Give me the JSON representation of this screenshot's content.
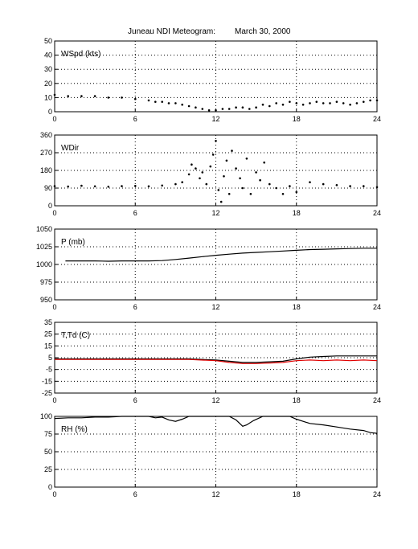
{
  "title": "Juneau NDI Meteogram:",
  "date": "March 30, 2000",
  "chart_data": [
    {
      "type": "scatter",
      "label": "WSpd (kts)",
      "xlim": [
        0,
        24
      ],
      "xticks": [
        0,
        6,
        12,
        18,
        24
      ],
      "ylim": [
        0,
        50
      ],
      "yticks": [
        0,
        10,
        20,
        30,
        40,
        50
      ],
      "grid": true,
      "series": [
        {
          "color": "#000000",
          "x": [
            0,
            1,
            2,
            3,
            4,
            5,
            6,
            7,
            7.5,
            8,
            8.5,
            9,
            9.5,
            10,
            10.5,
            11,
            11.5,
            12,
            12.5,
            13,
            13.5,
            14,
            14.5,
            15,
            15.5,
            16,
            16.5,
            17,
            17.5,
            18,
            18.5,
            19,
            19.5,
            20,
            20.5,
            21,
            21.5,
            22,
            22.5,
            23,
            23.5,
            24
          ],
          "y": [
            12,
            11,
            11,
            11,
            10,
            10,
            9,
            8,
            7,
            7,
            6,
            6,
            5,
            4,
            3,
            2,
            1,
            1,
            2,
            2,
            3,
            3,
            2,
            3,
            5,
            4,
            6,
            5,
            7,
            6,
            5,
            6,
            7,
            6,
            6,
            7,
            6,
            5,
            6,
            7,
            8,
            8
          ]
        }
      ]
    },
    {
      "type": "scatter",
      "label": "WDir",
      "xlim": [
        0,
        24
      ],
      "xticks": [
        0,
        6,
        12,
        18,
        24
      ],
      "ylim": [
        0,
        360
      ],
      "yticks": [
        0,
        90,
        180,
        270,
        360
      ],
      "grid": true,
      "series": [
        {
          "color": "#000000",
          "x": [
            0,
            1,
            2,
            3,
            4,
            5,
            6,
            7,
            8,
            9,
            9.5,
            10,
            10.2,
            10.5,
            10.8,
            11,
            11.3,
            11.6,
            11.8,
            12,
            12.2,
            12.4,
            12.6,
            12.8,
            13,
            13.2,
            13.5,
            13.8,
            14,
            14.3,
            14.6,
            15,
            15.3,
            15.6,
            16,
            16.5,
            17,
            17.5,
            18,
            19,
            20,
            21,
            22,
            23,
            24
          ],
          "y": [
            100,
            98,
            102,
            99,
            97,
            100,
            101,
            99,
            103,
            110,
            120,
            160,
            210,
            190,
            140,
            170,
            110,
            200,
            260,
            330,
            80,
            20,
            150,
            230,
            60,
            280,
            190,
            140,
            90,
            240,
            60,
            170,
            130,
            220,
            110,
            90,
            60,
            100,
            70,
            120,
            110,
            105,
            100,
            100,
            95
          ]
        }
      ]
    },
    {
      "type": "line",
      "label": "P (mb)",
      "xlim": [
        0,
        24
      ],
      "xticks": [
        0,
        6,
        12,
        18,
        24
      ],
      "ylim": [
        950,
        1050
      ],
      "yticks": [
        950,
        975,
        1000,
        1025,
        1050
      ],
      "grid": true,
      "series": [
        {
          "color": "#000000",
          "x": [
            0.8,
            2,
            3,
            4,
            5,
            6,
            7,
            8,
            9,
            10,
            11,
            12,
            13,
            14,
            15,
            16,
            17,
            18,
            19,
            20,
            21,
            22,
            23,
            24
          ],
          "y": [
            1005,
            1005,
            1005,
            1004.5,
            1005,
            1005,
            1005,
            1005.5,
            1007,
            1009,
            1011,
            1013,
            1014.5,
            1016,
            1017,
            1018,
            1019,
            1020,
            1021,
            1021.5,
            1022,
            1022.5,
            1023,
            1023
          ]
        }
      ]
    },
    {
      "type": "line",
      "label": "T,Td (C)",
      "xlim": [
        0,
        24
      ],
      "xticks": [
        0,
        6,
        12,
        18,
        24
      ],
      "ylim": [
        -25,
        35
      ],
      "yticks": [
        -25,
        -15,
        -5,
        5,
        15,
        25,
        35
      ],
      "grid": true,
      "series": [
        {
          "color": "#000000",
          "x": [
            0,
            2,
            4,
            6,
            8,
            10,
            12,
            13,
            14,
            15,
            16,
            17,
            18,
            19,
            20,
            21,
            22,
            23,
            24
          ],
          "y": [
            4,
            4,
            4,
            4,
            4,
            4,
            3,
            2,
            1,
            1,
            1.5,
            2,
            4,
            5.5,
            6,
            6.5,
            6.5,
            6.5,
            6.5
          ]
        },
        {
          "color": "#e00000",
          "x": [
            0,
            2,
            4,
            6,
            8,
            10,
            12,
            13,
            14,
            15,
            16,
            17,
            18,
            19,
            20,
            21,
            22,
            23,
            24
          ],
          "y": [
            3.5,
            3.5,
            3.5,
            3.5,
            3.5,
            3.5,
            2.5,
            1,
            0,
            0,
            0.5,
            1,
            2.5,
            3,
            2.5,
            3,
            2.5,
            3,
            2.5
          ]
        }
      ]
    },
    {
      "type": "line",
      "label": "RH (%)",
      "xlim": [
        0,
        24
      ],
      "xticks": [
        0,
        6,
        12,
        18,
        24
      ],
      "ylim": [
        0,
        100
      ],
      "yticks": [
        0,
        25,
        50,
        75,
        100
      ],
      "grid": true,
      "series": [
        {
          "color": "#000000",
          "x": [
            0,
            1,
            2,
            3,
            4,
            5,
            6,
            7,
            7.5,
            8,
            8.5,
            9,
            9.5,
            10,
            10.5,
            11,
            12,
            13,
            13.5,
            14,
            14.3,
            14.8,
            15.5,
            16,
            17,
            17.5,
            18,
            18.5,
            19,
            20,
            21,
            22,
            23,
            23.5,
            24
          ],
          "y": [
            97,
            98,
            98,
            99,
            99,
            100,
            100,
            100,
            98,
            99,
            95,
            93,
            96,
            100,
            100,
            100,
            100,
            100,
            95,
            86,
            88,
            94,
            100,
            100,
            100,
            100,
            96,
            93,
            90,
            88,
            85,
            82,
            80,
            77,
            76
          ]
        }
      ]
    }
  ]
}
